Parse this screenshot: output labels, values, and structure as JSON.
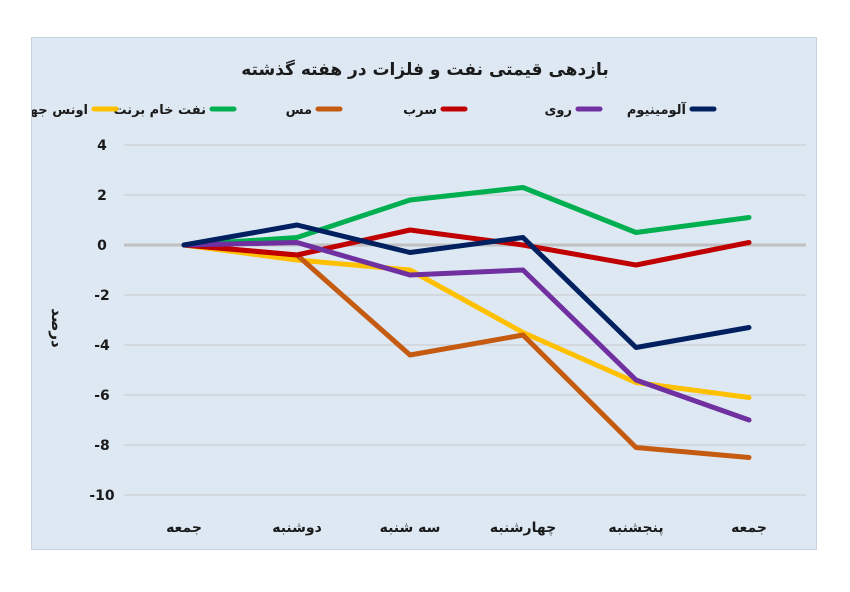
{
  "chart_data": {
    "type": "line",
    "title": "بازدهی قیمتی نفت و فلزات در هفته گذشته",
    "ylabel": "درصد",
    "xlabel": "",
    "categories": [
      "جمعه",
      "دوشنبه",
      "سه شنبه",
      "چهارشنبه",
      "پنجشنبه",
      "جمعه"
    ],
    "ylim": [
      -10,
      4
    ],
    "yticks": [
      4,
      2,
      0,
      -2,
      -4,
      -6,
      -8,
      -10
    ],
    "ytick_labels": [
      "4",
      "2",
      "0",
      "-2",
      "-4",
      "-6",
      "-8",
      "-10"
    ],
    "grid": true,
    "legend_position": "top",
    "series": [
      {
        "name": "اونس جهانی طلا",
        "color": "#ffc000",
        "values": [
          0,
          -0.6,
          -1.0,
          -3.5,
          -5.5,
          -6.1
        ]
      },
      {
        "name": "نفت خام برنت",
        "color": "#00b050",
        "values": [
          0,
          0.3,
          1.8,
          2.3,
          0.5,
          1.1
        ]
      },
      {
        "name": "مس",
        "color": "#c55a11",
        "values": [
          0,
          -0.4,
          -4.4,
          -3.6,
          -8.1,
          -8.5
        ]
      },
      {
        "name": "سرب",
        "color": "#c00000",
        "values": [
          0,
          -0.4,
          0.6,
          0.0,
          -0.8,
          0.1
        ]
      },
      {
        "name": "روی",
        "color": "#7030a0",
        "values": [
          0,
          0.1,
          -1.2,
          -1.0,
          -5.4,
          -7.0
        ]
      },
      {
        "name": "آلومینیوم",
        "color": "#002060",
        "values": [
          0,
          0.8,
          -0.3,
          0.3,
          -4.1,
          -3.3
        ]
      }
    ]
  }
}
